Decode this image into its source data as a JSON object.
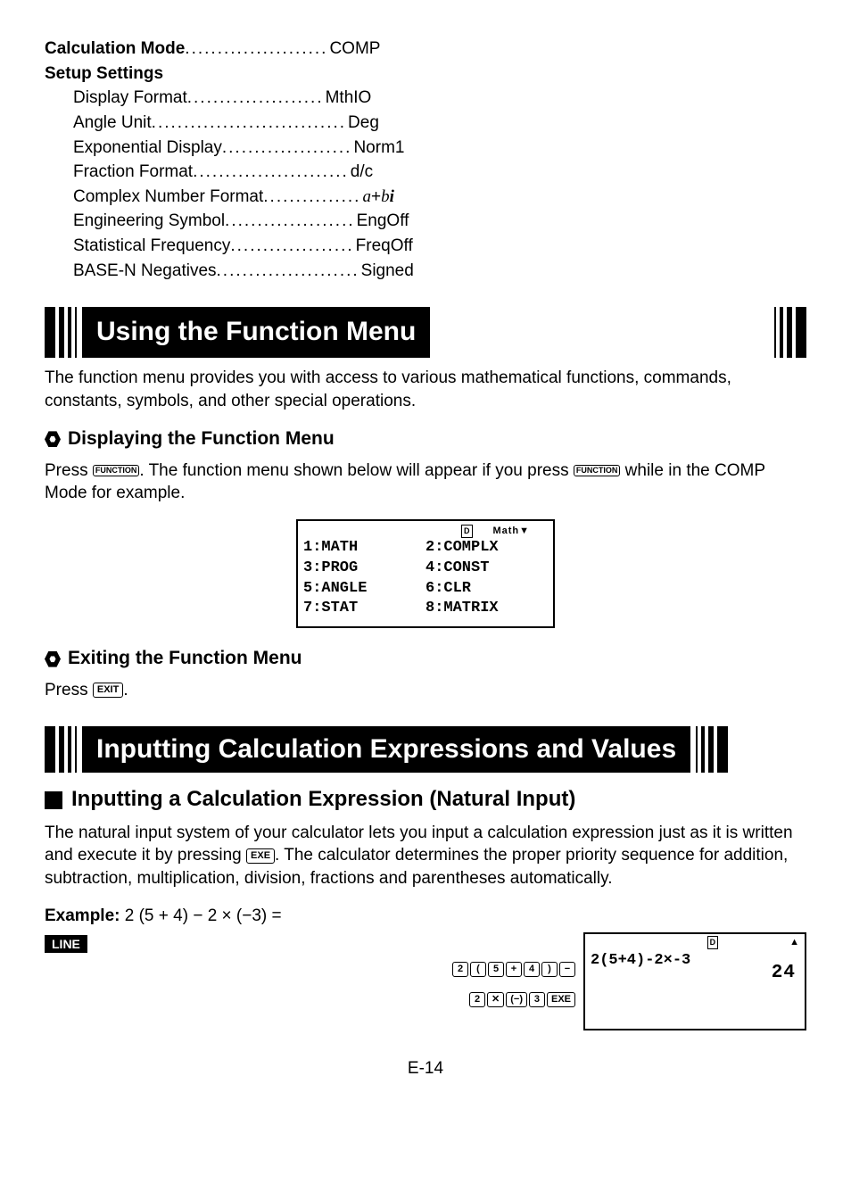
{
  "settings": {
    "mode_label": "Calculation Mode",
    "mode_value": "COMP",
    "setup_label": "Setup Settings",
    "rows": [
      {
        "label": "Display Format",
        "value": "MthIO"
      },
      {
        "label": "Angle Unit",
        "value": "Deg"
      },
      {
        "label": "Exponential Display",
        "value": "Norm1"
      },
      {
        "label": "Fraction Format",
        "value": "d/c"
      },
      {
        "label": "Complex Number Format",
        "value_html": "a+bi",
        "italic": true
      },
      {
        "label": "Engineering Symbol",
        "value": "EngOff"
      },
      {
        "label": "Statistical Frequency",
        "value": "FreqOff"
      },
      {
        "label": "BASE-N Negatives",
        "value": "Signed"
      }
    ],
    "dot_counts": [
      21,
      30,
      20,
      24,
      15,
      20,
      19,
      22
    ],
    "mode_dots": 22
  },
  "section1": {
    "title": "Using the Function Menu",
    "intro": "The function menu provides you with access to various mathematical functions, commands, constants, symbols, and other special operations.",
    "sub1": "Displaying the Function Menu",
    "sub1_text_a": "Press ",
    "sub1_text_b": ". The function menu shown below will appear if you press ",
    "sub1_text_c": " while in the COMP Mode for example.",
    "key_function": "FUNCTION",
    "lcd": {
      "indicator1": "D",
      "indicator2": "Math▼",
      "rows": [
        [
          "1:MATH",
          "2:COMPLX"
        ],
        [
          "3:PROG",
          "4:CONST"
        ],
        [
          "5:ANGLE",
          "6:CLR"
        ],
        [
          "7:STAT",
          "8:MATRIX"
        ]
      ]
    },
    "sub2": "Exiting the Function Menu",
    "sub2_text_a": "Press ",
    "sub2_text_b": ".",
    "key_exit": "EXIT"
  },
  "section2": {
    "title": "Inputting Calculation Expressions and Values",
    "sub1": "Inputting a Calculation Expression (Natural Input)",
    "para_a": "The natural input system of your calculator lets you input a calculation expression just as it is written and execute it by pressing ",
    "para_b": ". The calculator determines the proper priority sequence for addition, subtraction, multiplication, division, fractions and parentheses automatically.",
    "key_exe": "EXE",
    "example_label": "Example:",
    "example_expr": " 2 (5 + 4) − 2 × (−3) =",
    "line_badge": "LINE",
    "keyseq_line1": [
      "2",
      "(",
      "5",
      "+",
      "4",
      ")",
      "−"
    ],
    "keyseq_line2": [
      "2",
      "✕",
      "(−)",
      "3",
      "EXE"
    ],
    "lcd2": {
      "indicator1": "D",
      "indicator2": "▲",
      "expr": "2(5+4)-2×-3",
      "result": "24"
    }
  },
  "page_number": "E-14"
}
